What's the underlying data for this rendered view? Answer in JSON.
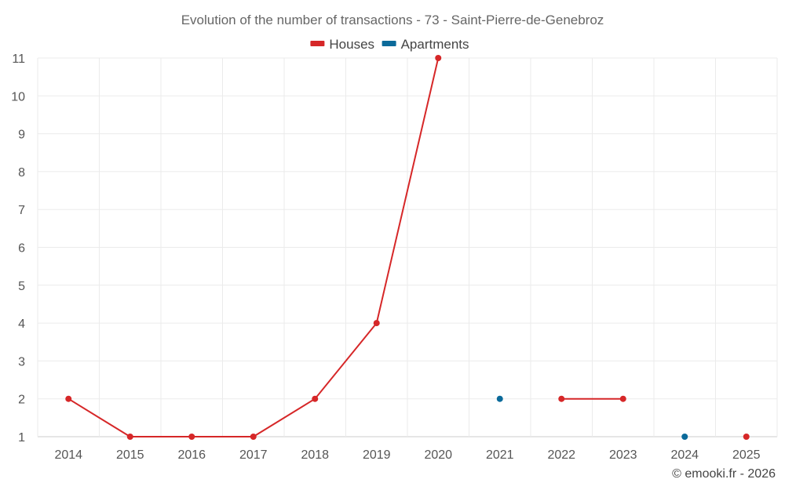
{
  "chart_data": {
    "type": "line",
    "title": "Evolution of the number of transactions - 73 - Saint-Pierre-de-Genebroz",
    "xlabel": "",
    "ylabel": "",
    "categories": [
      "2014",
      "2015",
      "2016",
      "2017",
      "2018",
      "2019",
      "2020",
      "2021",
      "2022",
      "2023",
      "2024",
      "2025"
    ],
    "ylim": [
      1,
      11
    ],
    "yticks": [
      "1",
      "2",
      "3",
      "4",
      "5",
      "6",
      "7",
      "8",
      "9",
      "10",
      "11"
    ],
    "grid": true,
    "legend_position": "top-center",
    "series": [
      {
        "name": "Houses",
        "color": "#d62728",
        "values": [
          2,
          1,
          1,
          1,
          2,
          4,
          11,
          null,
          2,
          2,
          null,
          1
        ]
      },
      {
        "name": "Apartments",
        "color": "#0b6a9a",
        "values": [
          null,
          null,
          null,
          null,
          null,
          null,
          null,
          2,
          null,
          null,
          1,
          null
        ]
      }
    ]
  },
  "credit": "© emooki.fr - 2026"
}
